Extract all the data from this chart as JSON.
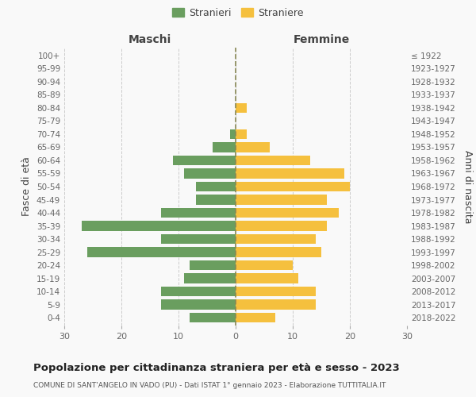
{
  "age_groups": [
    "0-4",
    "5-9",
    "10-14",
    "15-19",
    "20-24",
    "25-29",
    "30-34",
    "35-39",
    "40-44",
    "45-49",
    "50-54",
    "55-59",
    "60-64",
    "65-69",
    "70-74",
    "75-79",
    "80-84",
    "85-89",
    "90-94",
    "95-99",
    "100+"
  ],
  "birth_years": [
    "2018-2022",
    "2013-2017",
    "2008-2012",
    "2003-2007",
    "1998-2002",
    "1993-1997",
    "1988-1992",
    "1983-1987",
    "1978-1982",
    "1973-1977",
    "1968-1972",
    "1963-1967",
    "1958-1962",
    "1953-1957",
    "1948-1952",
    "1943-1947",
    "1938-1942",
    "1933-1937",
    "1928-1932",
    "1923-1927",
    "≤ 1922"
  ],
  "maschi": [
    8,
    13,
    13,
    9,
    8,
    26,
    13,
    27,
    13,
    7,
    7,
    9,
    11,
    4,
    1,
    0,
    0,
    0,
    0,
    0,
    0
  ],
  "femmine": [
    7,
    14,
    14,
    11,
    10,
    15,
    14,
    16,
    18,
    16,
    20,
    19,
    13,
    6,
    2,
    0,
    2,
    0,
    0,
    0,
    0
  ],
  "maschi_color": "#6a9e5f",
  "femmine_color": "#f5c03e",
  "title": "Popolazione per cittadinanza straniera per età e sesso - 2023",
  "subtitle": "COMUNE DI SANT'ANGELO IN VADO (PU) - Dati ISTAT 1° gennaio 2023 - Elaborazione TUTTITALIA.IT",
  "xlabel_left": "Maschi",
  "xlabel_right": "Femmine",
  "ylabel_left": "Fasce di età",
  "ylabel_right": "Anni di nascita",
  "legend_stranieri": "Stranieri",
  "legend_straniere": "Straniere",
  "xlim": 30,
  "background_color": "#f9f9f9",
  "grid_color": "#cccccc",
  "bar_height": 0.75
}
